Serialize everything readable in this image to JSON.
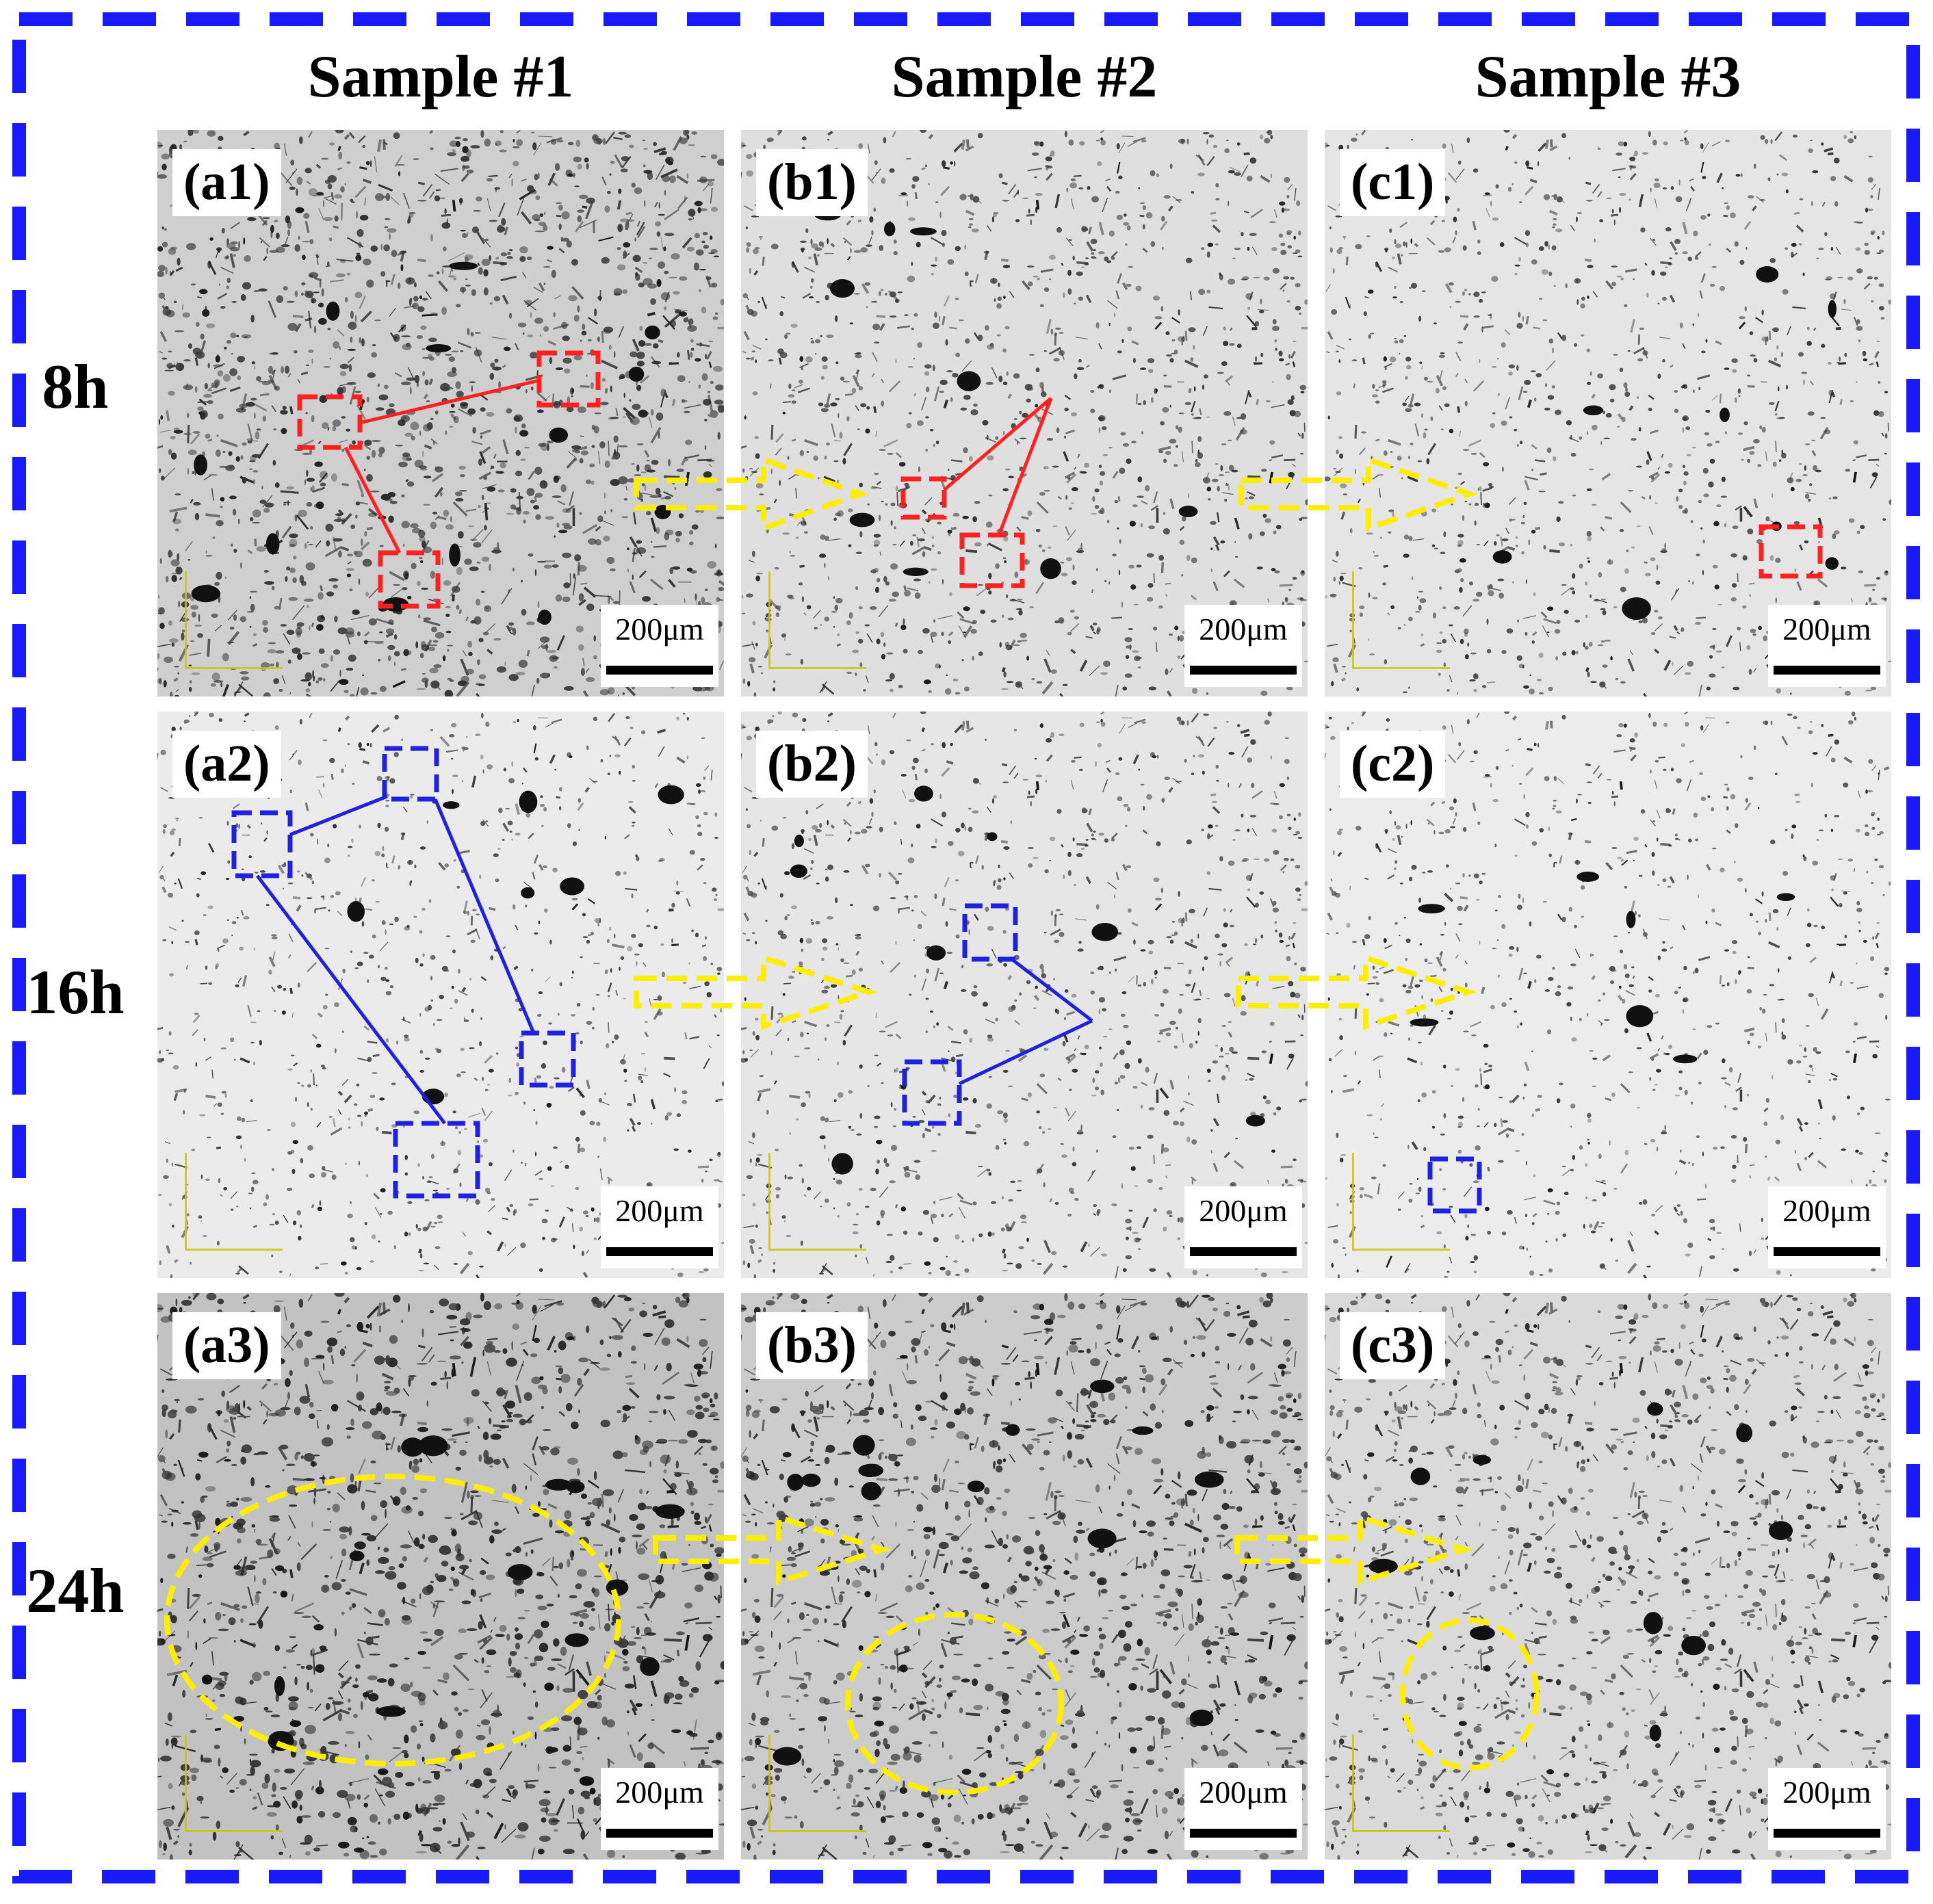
{
  "columns": [
    "Sample #1",
    "Sample #2",
    "Sample #3"
  ],
  "rows": [
    "8h",
    "16h",
    "24h"
  ],
  "panels": [
    [
      "(a1)",
      "(b1)",
      "(c1)"
    ],
    [
      "(a2)",
      "(b2)",
      "(c2)"
    ],
    [
      "(a3)",
      "(b3)",
      "(c3)"
    ]
  ],
  "scale_label": "200μm",
  "colors": {
    "frame": "#1a1aff",
    "defect_box_8h": "#ff2020",
    "defect_box_16h": "#2020e0",
    "arrow": "#ffee00",
    "ellipse": "#ffee00"
  },
  "densities": [
    [
      0.62,
      0.38,
      0.3
    ],
    [
      0.22,
      0.28,
      0.2
    ],
    [
      0.8,
      0.66,
      0.46
    ]
  ]
}
